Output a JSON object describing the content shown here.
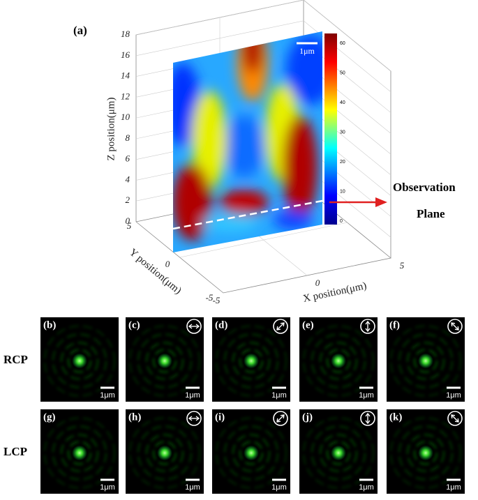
{
  "panel_a": {
    "label": "(a)",
    "z_axis": {
      "label": "Z position(μm)",
      "ticks": [
        "0",
        "2",
        "4",
        "6",
        "8",
        "10",
        "12",
        "14",
        "16",
        "18"
      ]
    },
    "y_axis": {
      "label": "Y position(μm)",
      "ticks": [
        "5",
        "0",
        "-5"
      ]
    },
    "x_axis": {
      "label": "X position(μm)",
      "ticks": [
        "-5",
        "0",
        "5"
      ]
    },
    "colorbar_ticks": [
      "0",
      "10",
      "20",
      "30",
      "40",
      "50",
      "60"
    ],
    "scale_bar": "1μm",
    "annotation": [
      "Observation",
      "Plane"
    ]
  },
  "rows": [
    {
      "label": "RCP",
      "panels": [
        {
          "label": "(b)",
          "scale_bar": "1μm"
        },
        {
          "label": "(c)",
          "scale_bar": "1μm"
        },
        {
          "label": "(d)",
          "scale_bar": "1μm"
        },
        {
          "label": "(e)",
          "scale_bar": "1μm"
        },
        {
          "label": "(f)",
          "scale_bar": "1μm"
        }
      ]
    },
    {
      "label": "LCP",
      "panels": [
        {
          "label": "(g)",
          "scale_bar": "1μm"
        },
        {
          "label": "(h)",
          "scale_bar": "1μm"
        },
        {
          "label": "(i)",
          "scale_bar": "1μm"
        },
        {
          "label": "(j)",
          "scale_bar": "1μm"
        },
        {
          "label": "(k)",
          "scale_bar": "1μm"
        }
      ]
    }
  ]
}
